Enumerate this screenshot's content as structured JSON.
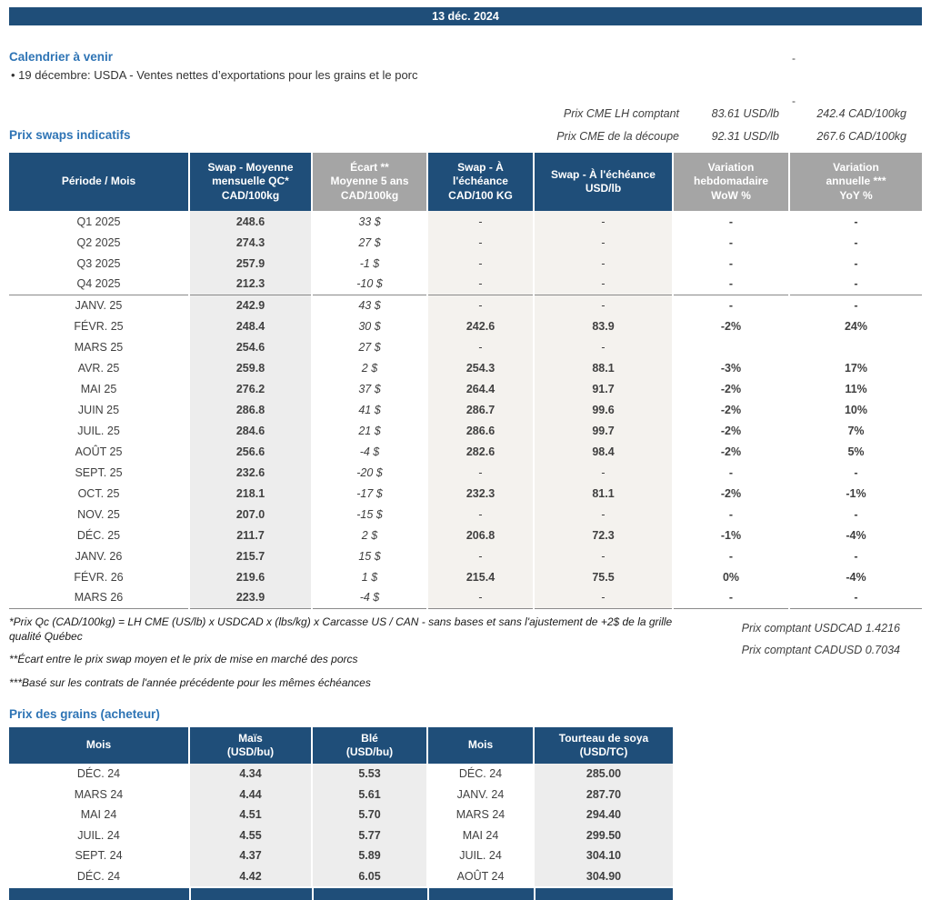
{
  "header": {
    "date": "13 déc. 2024"
  },
  "misc": {
    "dash_top_right_1": "-",
    "dash_top_right_2": "-"
  },
  "calendar": {
    "heading": "Calendrier à venir",
    "item": "• 19 décembre: USDA - Ventes nettes d’exportations pour les grains et le porc"
  },
  "cme": {
    "rows": [
      {
        "label": "Prix CME LH comptant",
        "usd": "83.61 USD/lb",
        "cad": "242.4 CAD/100kg"
      },
      {
        "label": "Prix CME de la découpe",
        "usd": "92.31 USD/lb",
        "cad": "267.6 CAD/100kg"
      }
    ]
  },
  "swaps": {
    "heading": "Prix swaps indicatifs",
    "columns": [
      {
        "label": "Période / Mois",
        "tone": "navy"
      },
      {
        "label": "Swap - Moyenne\nmensuelle QC*\nCAD/100kg",
        "tone": "navy"
      },
      {
        "label": "Écart **\nMoyenne 5 ans\nCAD/100kg",
        "tone": "gray"
      },
      {
        "label": "Swap - À\nl'échéance\nCAD/100 KG",
        "tone": "navy"
      },
      {
        "label": "Swap - À l'échéance\nUSD/lb",
        "tone": "navy"
      },
      {
        "label": "Variation\nhebdomadaire\nWoW %",
        "tone": "gray"
      },
      {
        "label": "Variation\nannuelle ***\nYoY %",
        "tone": "gray"
      }
    ],
    "rows": [
      {
        "period": "Q1 2025",
        "avg": "248.6",
        "ecart": "33 $",
        "ecart_c": "pos",
        "cad": "-",
        "usd": "-",
        "wow": "-",
        "wow_c": "dashc",
        "yoy": "-",
        "yoy_c": "dashc"
      },
      {
        "period": "Q2 2025",
        "avg": "274.3",
        "ecart": "27 $",
        "ecart_c": "pos",
        "cad": "-",
        "usd": "-",
        "wow": "-",
        "wow_c": "dashc",
        "yoy": "-",
        "yoy_c": "dashc"
      },
      {
        "period": "Q3 2025",
        "avg": "257.9",
        "ecart": "-1 $",
        "ecart_c": "neg",
        "cad": "-",
        "usd": "-",
        "wow": "-",
        "wow_c": "dashc",
        "yoy": "-",
        "yoy_c": "dashc"
      },
      {
        "period": "Q4 2025",
        "avg": "212.3",
        "ecart": "-10 $",
        "ecart_c": "neg",
        "cad": "-",
        "usd": "-",
        "wow": "-",
        "wow_c": "dashc",
        "yoy": "-",
        "yoy_c": "dashc",
        "sep": true
      },
      {
        "period": "JANV. 25",
        "avg": "242.9",
        "ecart": "43 $",
        "ecart_c": "pos",
        "cad": "-",
        "usd": "-",
        "wow": "-",
        "wow_c": "dashc",
        "yoy": "-",
        "yoy_c": "dashc"
      },
      {
        "period": "FÉVR. 25",
        "avg": "248.4",
        "ecart": "30 $",
        "ecart_c": "pos",
        "cad": "242.6",
        "usd": "83.9",
        "wow": "-2%",
        "wow_c": "neg",
        "yoy": "24%",
        "yoy_c": "pos"
      },
      {
        "period": "MARS 25",
        "avg": "254.6",
        "ecart": "27 $",
        "ecart_c": "pos",
        "cad": "-",
        "usd": "-",
        "wow": "",
        "wow_c": "",
        "yoy": "",
        "yoy_c": ""
      },
      {
        "period": "AVR. 25",
        "avg": "259.8",
        "ecart": "2 $",
        "ecart_c": "pos",
        "cad": "254.3",
        "usd": "88.1",
        "wow": "-3%",
        "wow_c": "neg",
        "yoy": "17%",
        "yoy_c": "pos"
      },
      {
        "period": "MAI 25",
        "avg": "276.2",
        "ecart": "37 $",
        "ecart_c": "pos",
        "cad": "264.4",
        "usd": "91.7",
        "wow": "-2%",
        "wow_c": "neg",
        "yoy": "11%",
        "yoy_c": "pos"
      },
      {
        "period": "JUIN 25",
        "avg": "286.8",
        "ecart": "41 $",
        "ecart_c": "pos",
        "cad": "286.7",
        "usd": "99.6",
        "wow": "-2%",
        "wow_c": "neg",
        "yoy": "10%",
        "yoy_c": "pos"
      },
      {
        "period": "JUIL. 25",
        "avg": "284.6",
        "ecart": "21 $",
        "ecart_c": "pos",
        "cad": "286.6",
        "usd": "99.7",
        "wow": "-2%",
        "wow_c": "neg",
        "yoy": "7%",
        "yoy_c": "pos"
      },
      {
        "period": "AOÛT 25",
        "avg": "256.6",
        "ecart": "-4 $",
        "ecart_c": "neg",
        "cad": "282.6",
        "usd": "98.4",
        "wow": "-2%",
        "wow_c": "neg",
        "yoy": "5%",
        "yoy_c": "pos"
      },
      {
        "period": "SEPT. 25",
        "avg": "232.6",
        "ecart": "-20 $",
        "ecart_c": "neg",
        "cad": "-",
        "usd": "-",
        "wow": "-",
        "wow_c": "dashc",
        "yoy": "-",
        "yoy_c": "dashc"
      },
      {
        "period": "OCT. 25",
        "avg": "218.1",
        "ecart": "-17 $",
        "ecart_c": "neg",
        "cad": "232.3",
        "usd": "81.1",
        "wow": "-2%",
        "wow_c": "neg",
        "yoy": "-1%",
        "yoy_c": "neg"
      },
      {
        "period": "NOV. 25",
        "avg": "207.0",
        "ecart": "-15 $",
        "ecart_c": "neg",
        "cad": "-",
        "usd": "-",
        "wow": "-",
        "wow_c": "dashc",
        "yoy": "-",
        "yoy_c": "dashc"
      },
      {
        "period": "DÉC. 25",
        "avg": "211.7",
        "ecart": "2 $",
        "ecart_c": "pos",
        "cad": "206.8",
        "usd": "72.3",
        "wow": "-1%",
        "wow_c": "neg",
        "yoy": "-4%",
        "yoy_c": "neg"
      },
      {
        "period": "JANV. 26",
        "avg": "215.7",
        "ecart": "15 $",
        "ecart_c": "pos",
        "cad": "-",
        "usd": "-",
        "wow": "-",
        "wow_c": "dashc",
        "yoy": "-",
        "yoy_c": "dashc"
      },
      {
        "period": "FÉVR. 26",
        "avg": "219.6",
        "ecart": "1 $",
        "ecart_c": "pos",
        "cad": "215.4",
        "usd": "75.5",
        "wow": "0%",
        "wow_c": "neg",
        "yoy": "-4%",
        "yoy_c": "neg"
      },
      {
        "period": "MARS 26",
        "avg": "223.9",
        "ecart": "-4 $",
        "ecart_c": "neg",
        "cad": "-",
        "usd": "-",
        "wow": "-",
        "wow_c": "dashc",
        "yoy": "-",
        "yoy_c": "dashc"
      }
    ],
    "footnotes": [
      "*Prix Qc (CAD/100kg) = LH CME (US/lb) x USDCAD x (lbs/kg) x Carcasse US / CAN - sans bases et sans l'ajustement de +2$ de la grille qualité Québec",
      "**Écart entre le prix swap moyen et le prix de mise en marché des porcs",
      "***Basé sur les contrats de l'année précédente pour les mêmes échéances"
    ],
    "spot_rates": [
      "Prix comptant USDCAD 1.4216",
      "Prix comptant CADUSD 0.7034"
    ]
  },
  "grains": {
    "heading": "Prix des grains (acheteur)",
    "columns": [
      "Mois",
      "Maïs\n(USD/bu)",
      "Blé\n(USD/bu)",
      "Mois",
      "Tourteau de soya\n(USD/TC)"
    ],
    "rows": [
      [
        "DÉC. 24",
        "4.34",
        "5.53",
        "DÉC. 24",
        "285.00"
      ],
      [
        "MARS 24",
        "4.44",
        "5.61",
        "JANV. 24",
        "287.70"
      ],
      [
        "MAI 24",
        "4.51",
        "5.70",
        "MARS 24",
        "294.40"
      ],
      [
        "JUIL. 24",
        "4.55",
        "5.77",
        "MAI 24",
        "299.50"
      ],
      [
        "SEPT. 24",
        "4.37",
        "5.89",
        "JUIL. 24",
        "304.10"
      ],
      [
        "DÉC. 24",
        "4.42",
        "6.05",
        "AOÛT 24",
        "304.90"
      ]
    ]
  },
  "colors": {
    "navy_header": "#1F4E79",
    "gray_header": "#A5A5A5",
    "heading_blue": "#2E74B5",
    "positive_green": "#008000",
    "negative_red": "#C00000",
    "shaded_column": "#EDEDED"
  }
}
